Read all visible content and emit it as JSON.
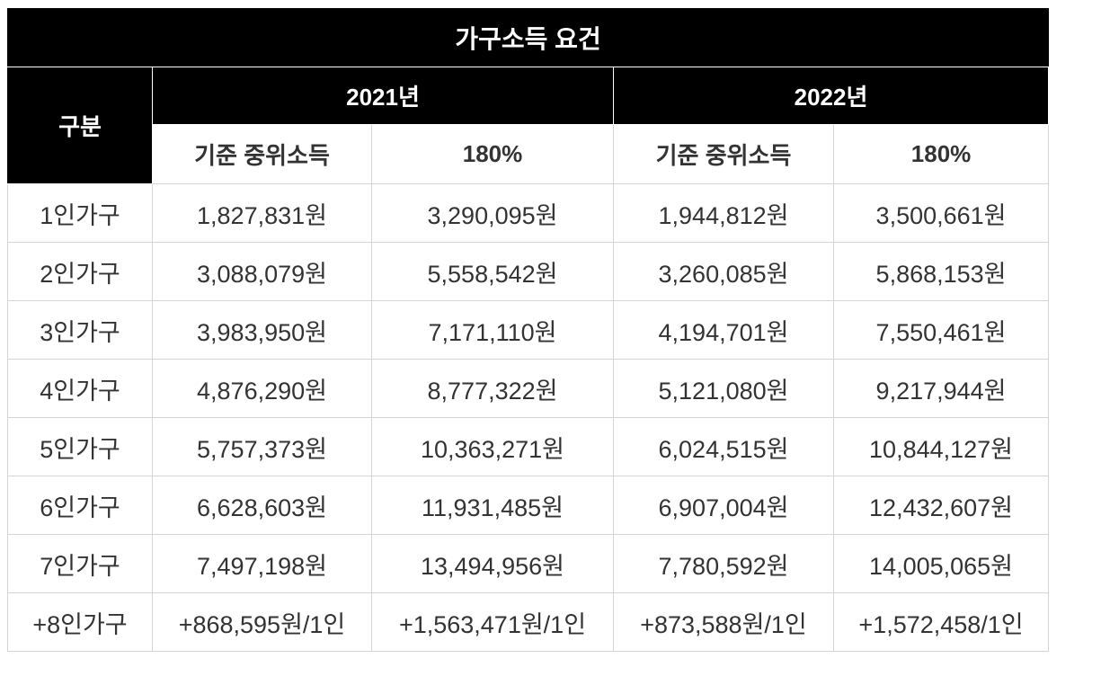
{
  "table": {
    "title": "가구소득 요건",
    "category_header": "구분",
    "years": [
      "2021년",
      "2022년"
    ],
    "subheaders": [
      "기준 중위소득",
      "180%",
      "기준 중위소득",
      "180%"
    ],
    "rows": [
      {
        "label": "1인가구",
        "cells": [
          "1,827,831원",
          "3,290,095원",
          "1,944,812원",
          "3,500,661원"
        ]
      },
      {
        "label": "2인가구",
        "cells": [
          "3,088,079원",
          "5,558,542원",
          "3,260,085원",
          "5,868,153원"
        ]
      },
      {
        "label": "3인가구",
        "cells": [
          "3,983,950원",
          "7,171,110원",
          "4,194,701원",
          "7,550,461원"
        ]
      },
      {
        "label": "4인가구",
        "cells": [
          "4,876,290원",
          "8,777,322원",
          "5,121,080원",
          "9,217,944원"
        ]
      },
      {
        "label": "5인가구",
        "cells": [
          "5,757,373원",
          "10,363,271원",
          "6,024,515원",
          "10,844,127원"
        ]
      },
      {
        "label": "6인가구",
        "cells": [
          "6,628,603원",
          "11,931,485원",
          "6,907,004원",
          "12,432,607원"
        ]
      },
      {
        "label": "7인가구",
        "cells": [
          "7,497,198원",
          "13,494,956원",
          "7,780,592원",
          "14,005,065원"
        ]
      },
      {
        "label": "+8인가구",
        "cells": [
          "+868,595원/1인",
          "+1,563,471원/1인",
          "+873,588원/1인",
          "+1,572,458/1인"
        ]
      }
    ]
  }
}
